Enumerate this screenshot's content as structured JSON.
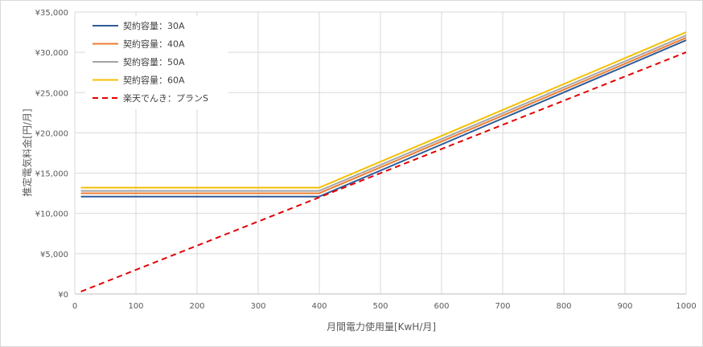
{
  "chart_data": {
    "type": "line",
    "title": "",
    "xlabel": "月間電力使用量[KwH/月]",
    "ylabel": "推定電気料金[円/月]",
    "xlim": [
      0,
      1000
    ],
    "ylim": [
      0,
      35000
    ],
    "x_ticks": [
      "0",
      "100",
      "200",
      "300",
      "400",
      "500",
      "600",
      "700",
      "800",
      "900",
      "1000"
    ],
    "y_ticks": [
      "¥0",
      "¥5,000",
      "¥10,000",
      "¥15,000",
      "¥20,000",
      "¥25,000",
      "¥30,000",
      "¥35,000"
    ],
    "grid": true,
    "legend_position": "top-left",
    "series": [
      {
        "name": "契約容量：30A",
        "color": "#2e5c9a",
        "style": "solid",
        "points": [
          [
            10,
            12100
          ],
          [
            400,
            12100
          ],
          [
            1000,
            31500
          ]
        ]
      },
      {
        "name": "契約容量：40A",
        "color": "#ed7d31",
        "style": "solid",
        "points": [
          [
            10,
            12500
          ],
          [
            400,
            12500
          ],
          [
            1000,
            31800
          ]
        ]
      },
      {
        "name": "契約容量：50A",
        "color": "#a5a5a5",
        "style": "solid",
        "points": [
          [
            10,
            12800
          ],
          [
            400,
            12800
          ],
          [
            1000,
            32100
          ]
        ]
      },
      {
        "name": "契約容量：60A",
        "color": "#f4bf00",
        "style": "solid",
        "points": [
          [
            10,
            13200
          ],
          [
            400,
            13200
          ],
          [
            1000,
            32500
          ]
        ]
      },
      {
        "name": "楽天でんき：プランS",
        "color": "#e60000",
        "style": "dashed",
        "points": [
          [
            10,
            300
          ],
          [
            1000,
            30000
          ]
        ]
      }
    ]
  }
}
